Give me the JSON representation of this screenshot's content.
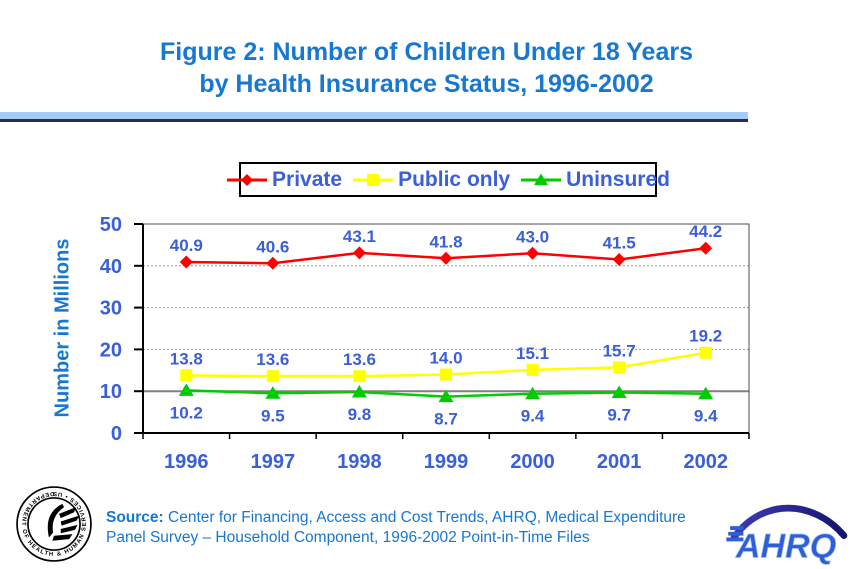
{
  "title": {
    "line1": "Figure 2: Number of Children Under 18 Years",
    "line2": "by Health Insurance Status, 1996-2002"
  },
  "chart_data": {
    "type": "line",
    "categories": [
      "1996",
      "1997",
      "1998",
      "1999",
      "2000",
      "2001",
      "2002"
    ],
    "series": [
      {
        "name": "Private",
        "color": "#FF0000",
        "marker": "diamond",
        "label_position": "above",
        "values": [
          40.9,
          40.6,
          43.1,
          41.8,
          43.0,
          41.5,
          44.2
        ]
      },
      {
        "name": "Public only",
        "color": "#FFFF00",
        "marker": "square",
        "label_position": "above",
        "values": [
          13.8,
          13.6,
          13.6,
          14.0,
          15.1,
          15.7,
          19.2
        ]
      },
      {
        "name": "Uninsured",
        "color": "#00CC00",
        "marker": "triangle",
        "label_position": "below",
        "values": [
          10.2,
          9.5,
          9.8,
          8.7,
          9.4,
          9.7,
          9.4
        ]
      }
    ],
    "title": "Figure 2: Number of Children Under 18 Years by Health Insurance Status, 1996-2002",
    "xlabel": "",
    "ylabel": "Number in Millions",
    "ylim": [
      0,
      50
    ],
    "yticks": [
      0,
      10,
      20,
      30,
      40,
      50
    ],
    "grid": true,
    "legend_position": "top"
  },
  "colors": {
    "title_blue": "#1777D1",
    "label_blue": "#3A5FD6",
    "grid_gray": "#999999",
    "grid_solid_gray": "#808080",
    "axis_black": "#000000"
  },
  "footer": {
    "source_label": "Source:",
    "source_line1": "Center for Financing, Access and Cost Trends, AHRQ, Medical Expenditure",
    "source_line2": "Panel Survey – Household Component, 1996-2002 Point-in-Time Files"
  },
  "logos": {
    "hhs_alt": "hhs-seal",
    "ahrq_text": "AHRQ"
  }
}
